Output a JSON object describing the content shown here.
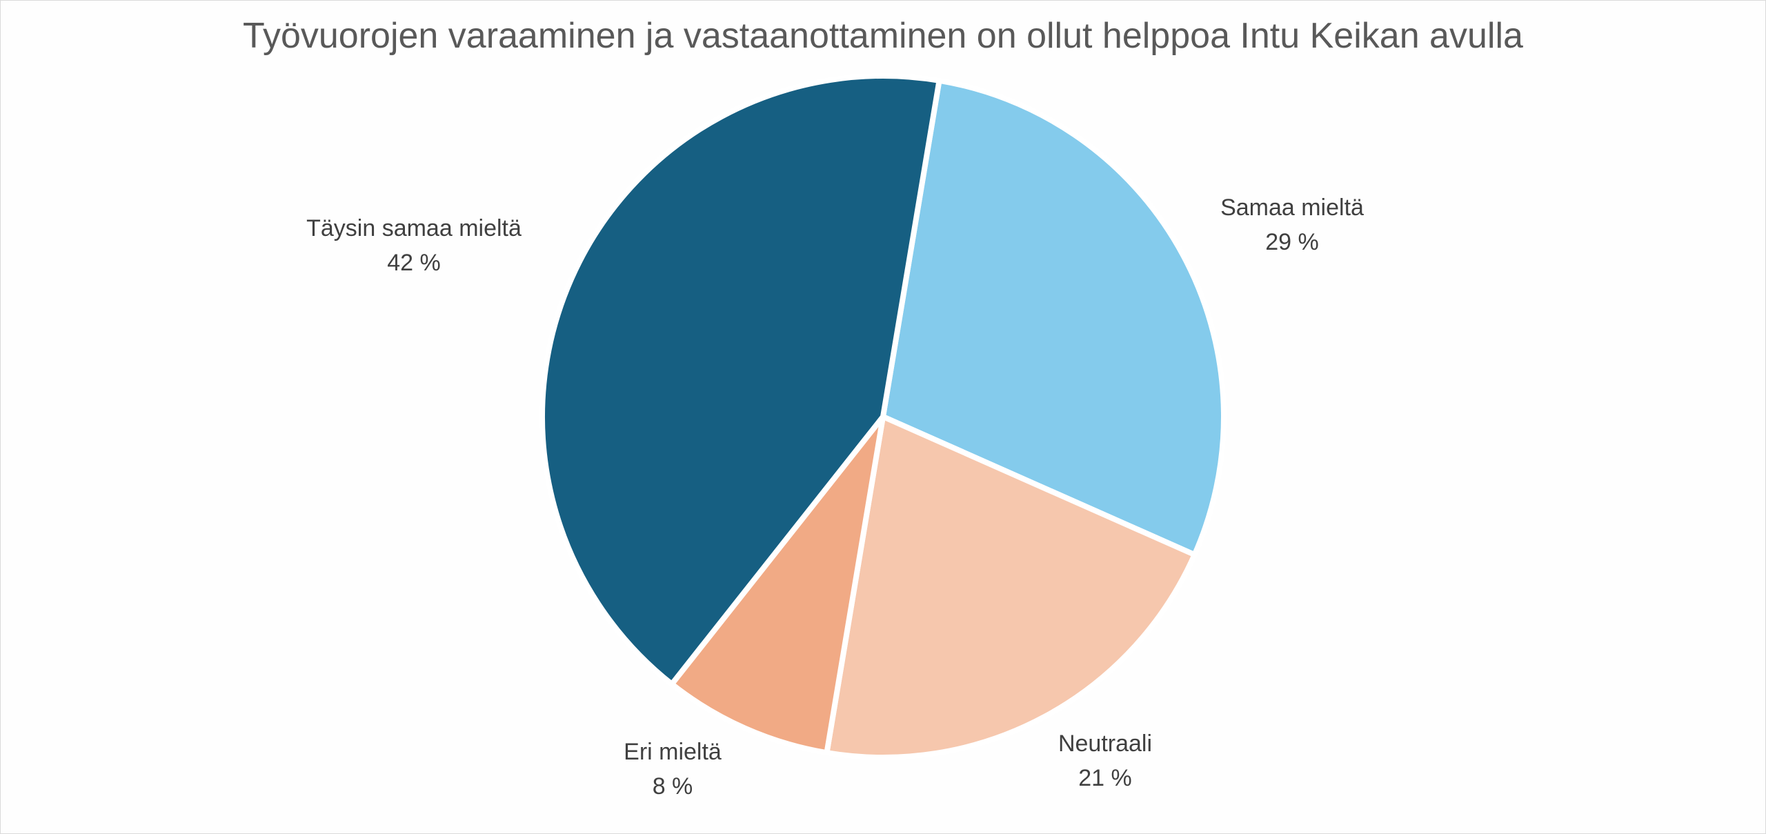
{
  "chart_data": {
    "type": "pie",
    "title": "Työvuorojen varaaminen ja vastaanottaminen on ollut helppoa Intu Keikan avulla",
    "slices": [
      {
        "label": "Samaa mieltä",
        "value": 29,
        "display": "29 %",
        "color": "#84CBEC"
      },
      {
        "label": "Neutraali",
        "value": 21,
        "display": "21 %",
        "color": "#F6C7AD"
      },
      {
        "label": "Eri mieltä",
        "value": 8,
        "display": "8 %",
        "color": "#F1AA85"
      },
      {
        "label": "Täysin samaa mieltä",
        "value": 42,
        "display": "42 %",
        "color": "#165F82"
      }
    ],
    "legend": "none"
  }
}
